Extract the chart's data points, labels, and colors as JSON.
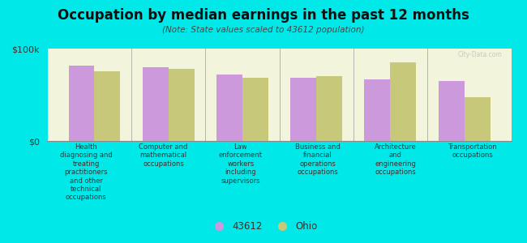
{
  "title": "Occupation by median earnings in the past 12 months",
  "subtitle": "(Note: State values scaled to 43612 population)",
  "background_color": "#00e8e8",
  "plot_bg_color": "#f2f5dc",
  "categories": [
    "Health\ndiagnosing and\ntreating\npractitioners\nand other\ntechnical\noccupations",
    "Computer and\nmathematical\noccupations",
    "Law\nenforcement\nworkers\nincluding\nsupervisors",
    "Business and\nfinancial\noperations\noccupations",
    "Architecture\nand\nengineering\noccupations",
    "Transportation\noccupations"
  ],
  "values_43612": [
    82000,
    80000,
    72000,
    68000,
    67000,
    65000
  ],
  "values_ohio": [
    75000,
    78000,
    68000,
    70000,
    85000,
    47000
  ],
  "color_43612": "#cc99dd",
  "color_ohio": "#c8c87a",
  "ylim": [
    0,
    100000
  ],
  "yticks": [
    0,
    100000
  ],
  "ytick_labels": [
    "$0",
    "$100k"
  ],
  "legend_label_43612": "43612",
  "legend_label_ohio": "Ohio",
  "bar_width": 0.35,
  "watermark": "City-Data.com"
}
